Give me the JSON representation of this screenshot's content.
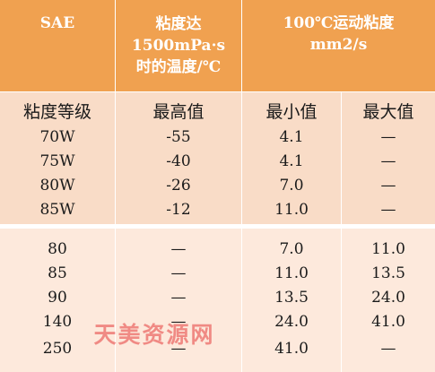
{
  "header": {
    "col1": "SAE",
    "col2_lines": [
      "粘度达",
      "1500mPa·s",
      "时的温度/℃"
    ],
    "col3_lines": [
      "100℃运动粘度",
      "mm2/s"
    ]
  },
  "subheader": {
    "grade": "粘度等级",
    "max_temp": "最高值",
    "min_visc": "最小值",
    "max_visc": "最大值"
  },
  "group1": [
    {
      "grade": "70W",
      "temp": "-55",
      "min": "4.1",
      "max": "—"
    },
    {
      "grade": "75W",
      "temp": "-40",
      "min": "4.1",
      "max": "—"
    },
    {
      "grade": "80W",
      "temp": "-26",
      "min": "7.0",
      "max": "—"
    },
    {
      "grade": "85W",
      "temp": "-12",
      "min": "11.0",
      "max": "—"
    }
  ],
  "group2": [
    {
      "grade": "80",
      "temp": "—",
      "min": "7.0",
      "max": "11.0"
    },
    {
      "grade": "85",
      "temp": "—",
      "min": "11.0",
      "max": "13.5"
    },
    {
      "grade": "90",
      "temp": "—",
      "min": "13.5",
      "max": "24.0"
    },
    {
      "grade": "140",
      "temp": "—",
      "min": "24.0",
      "max": "41.0"
    },
    {
      "grade": "250",
      "temp": "—",
      "min": "41.0",
      "max": "—"
    }
  ],
  "watermark": "天美资源网"
}
